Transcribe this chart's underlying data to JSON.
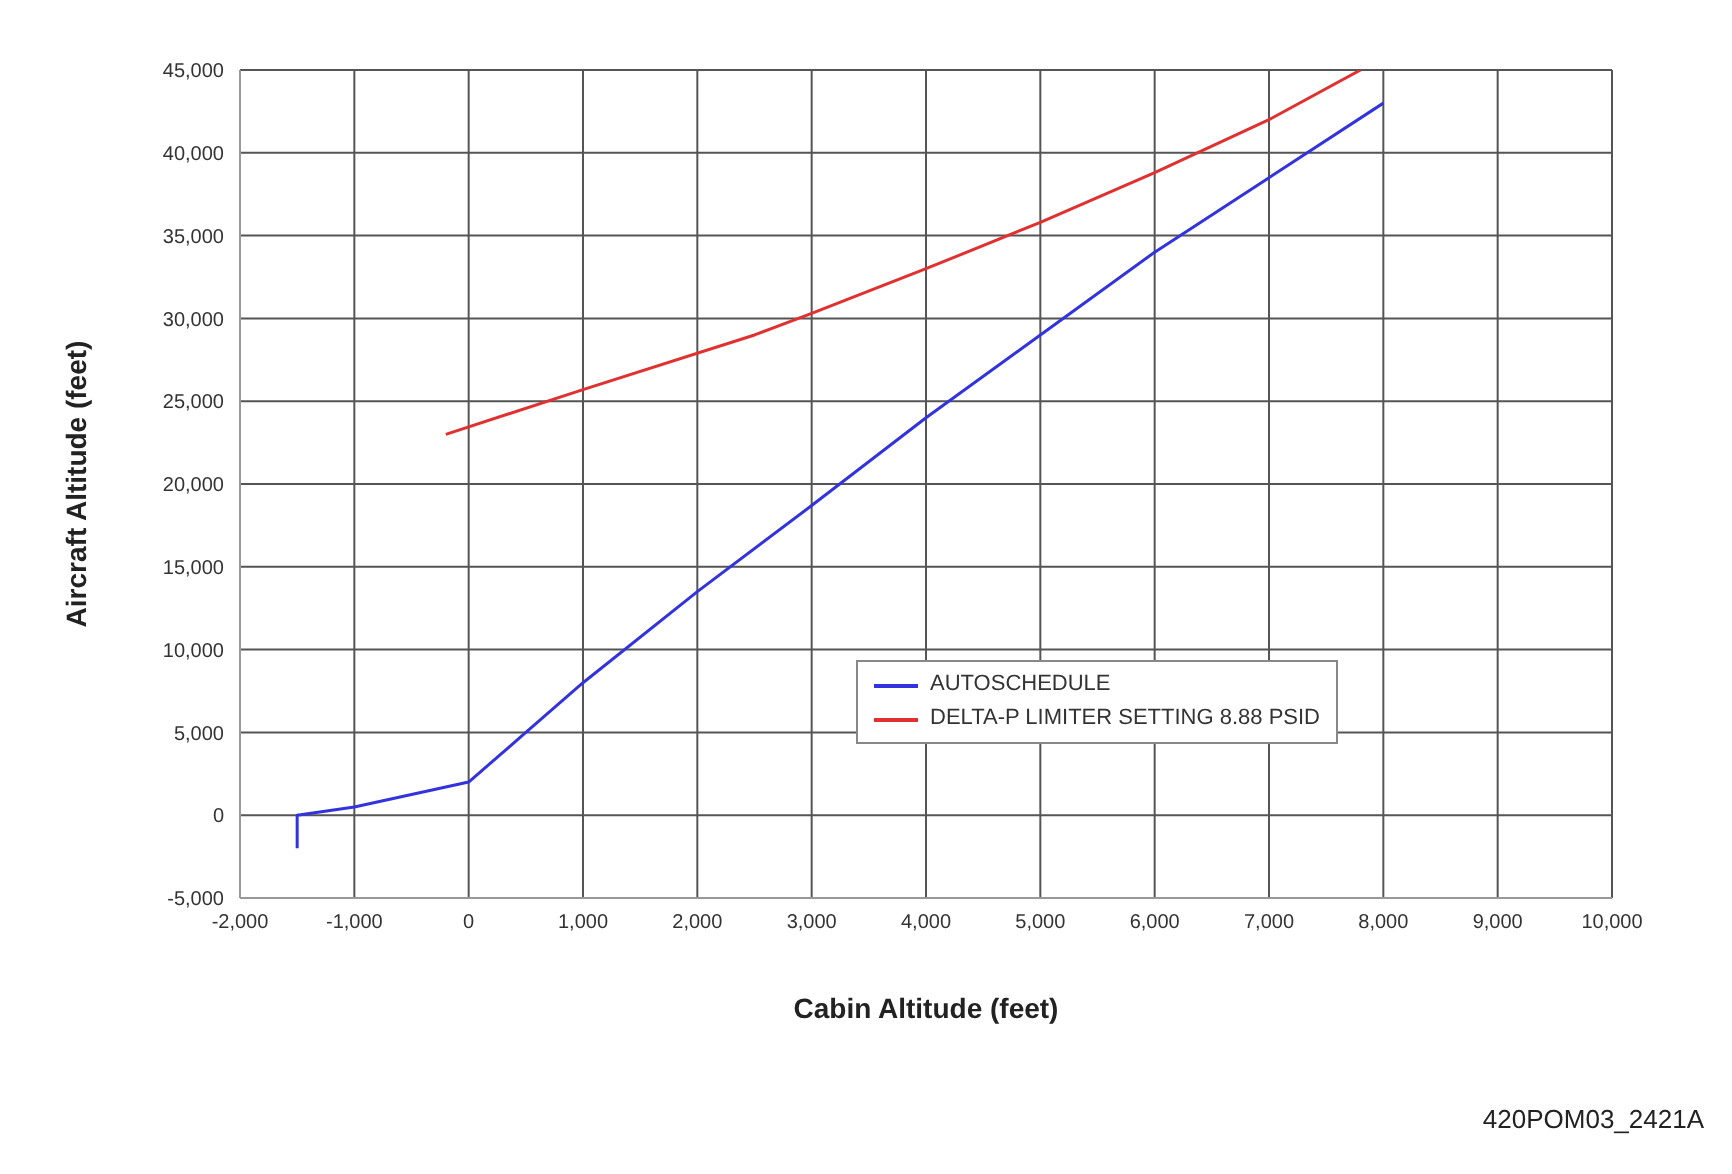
{
  "chart_data": {
    "type": "line",
    "xlabel": "Cabin Altitude (feet)",
    "ylabel": "Aircraft Altitude (feet)",
    "annotations": [
      "420POM03_2421A"
    ],
    "xlim": [
      -2000,
      10000
    ],
    "xticks": [
      {
        "value": -2000,
        "label": "-2,000"
      },
      {
        "value": -1000,
        "label": "-1,000"
      },
      0,
      {
        "value": 1000,
        "label": "1,000"
      },
      {
        "value": 2000,
        "label": "2,000"
      },
      {
        "value": 3000,
        "label": "3,000"
      },
      {
        "value": 4000,
        "label": "4,000"
      },
      {
        "value": 5000,
        "label": "5,000"
      },
      {
        "value": 6000,
        "label": "6,000"
      },
      {
        "value": 7000,
        "label": "7,000"
      },
      {
        "value": 8000,
        "label": "8,000"
      },
      {
        "value": 9000,
        "label": "9,000"
      },
      {
        "value": 10000,
        "label": "10,000"
      }
    ],
    "ylim": [
      -5000,
      45000
    ],
    "yticks": [
      {
        "value": -5000,
        "label": "-5,000"
      },
      0,
      {
        "value": 5000,
        "label": "5,000"
      },
      {
        "value": 10000,
        "label": "10,000"
      },
      {
        "value": 15000,
        "label": "15,000"
      },
      {
        "value": 20000,
        "label": "20,000"
      },
      {
        "value": 25000,
        "label": "25,000"
      },
      {
        "value": 30000,
        "label": "30,000"
      },
      {
        "value": 35000,
        "label": "35,000"
      },
      {
        "value": 40000,
        "label": "40,000"
      },
      {
        "value": 45000,
        "label": "45,000"
      }
    ],
    "grid": true,
    "legend": "bottom right",
    "marker": "none",
    "line_style": "solid",
    "series": [
      {
        "name": "AUTOSCHEDULE",
        "color": "#3333dd",
        "x": [
          -1500,
          -1500,
          -1000,
          0,
          500,
          1000,
          2000,
          3000,
          4000,
          5000,
          6000,
          7000,
          8000
        ],
        "values": [
          -2000,
          0,
          500,
          2000,
          5000,
          8000,
          13500,
          18700,
          24000,
          29000,
          34000,
          38500,
          43000
        ]
      },
      {
        "name": "DELTA-P LIMITER SETTING 8.88 PSID",
        "color": "#e03030",
        "x": [
          -200,
          1000,
          2500,
          3000,
          4000,
          5000,
          6000,
          7000,
          7800
        ],
        "values": [
          23000,
          25700,
          29000,
          30300,
          33000,
          35800,
          38800,
          42000,
          45000
        ]
      }
    ]
  }
}
